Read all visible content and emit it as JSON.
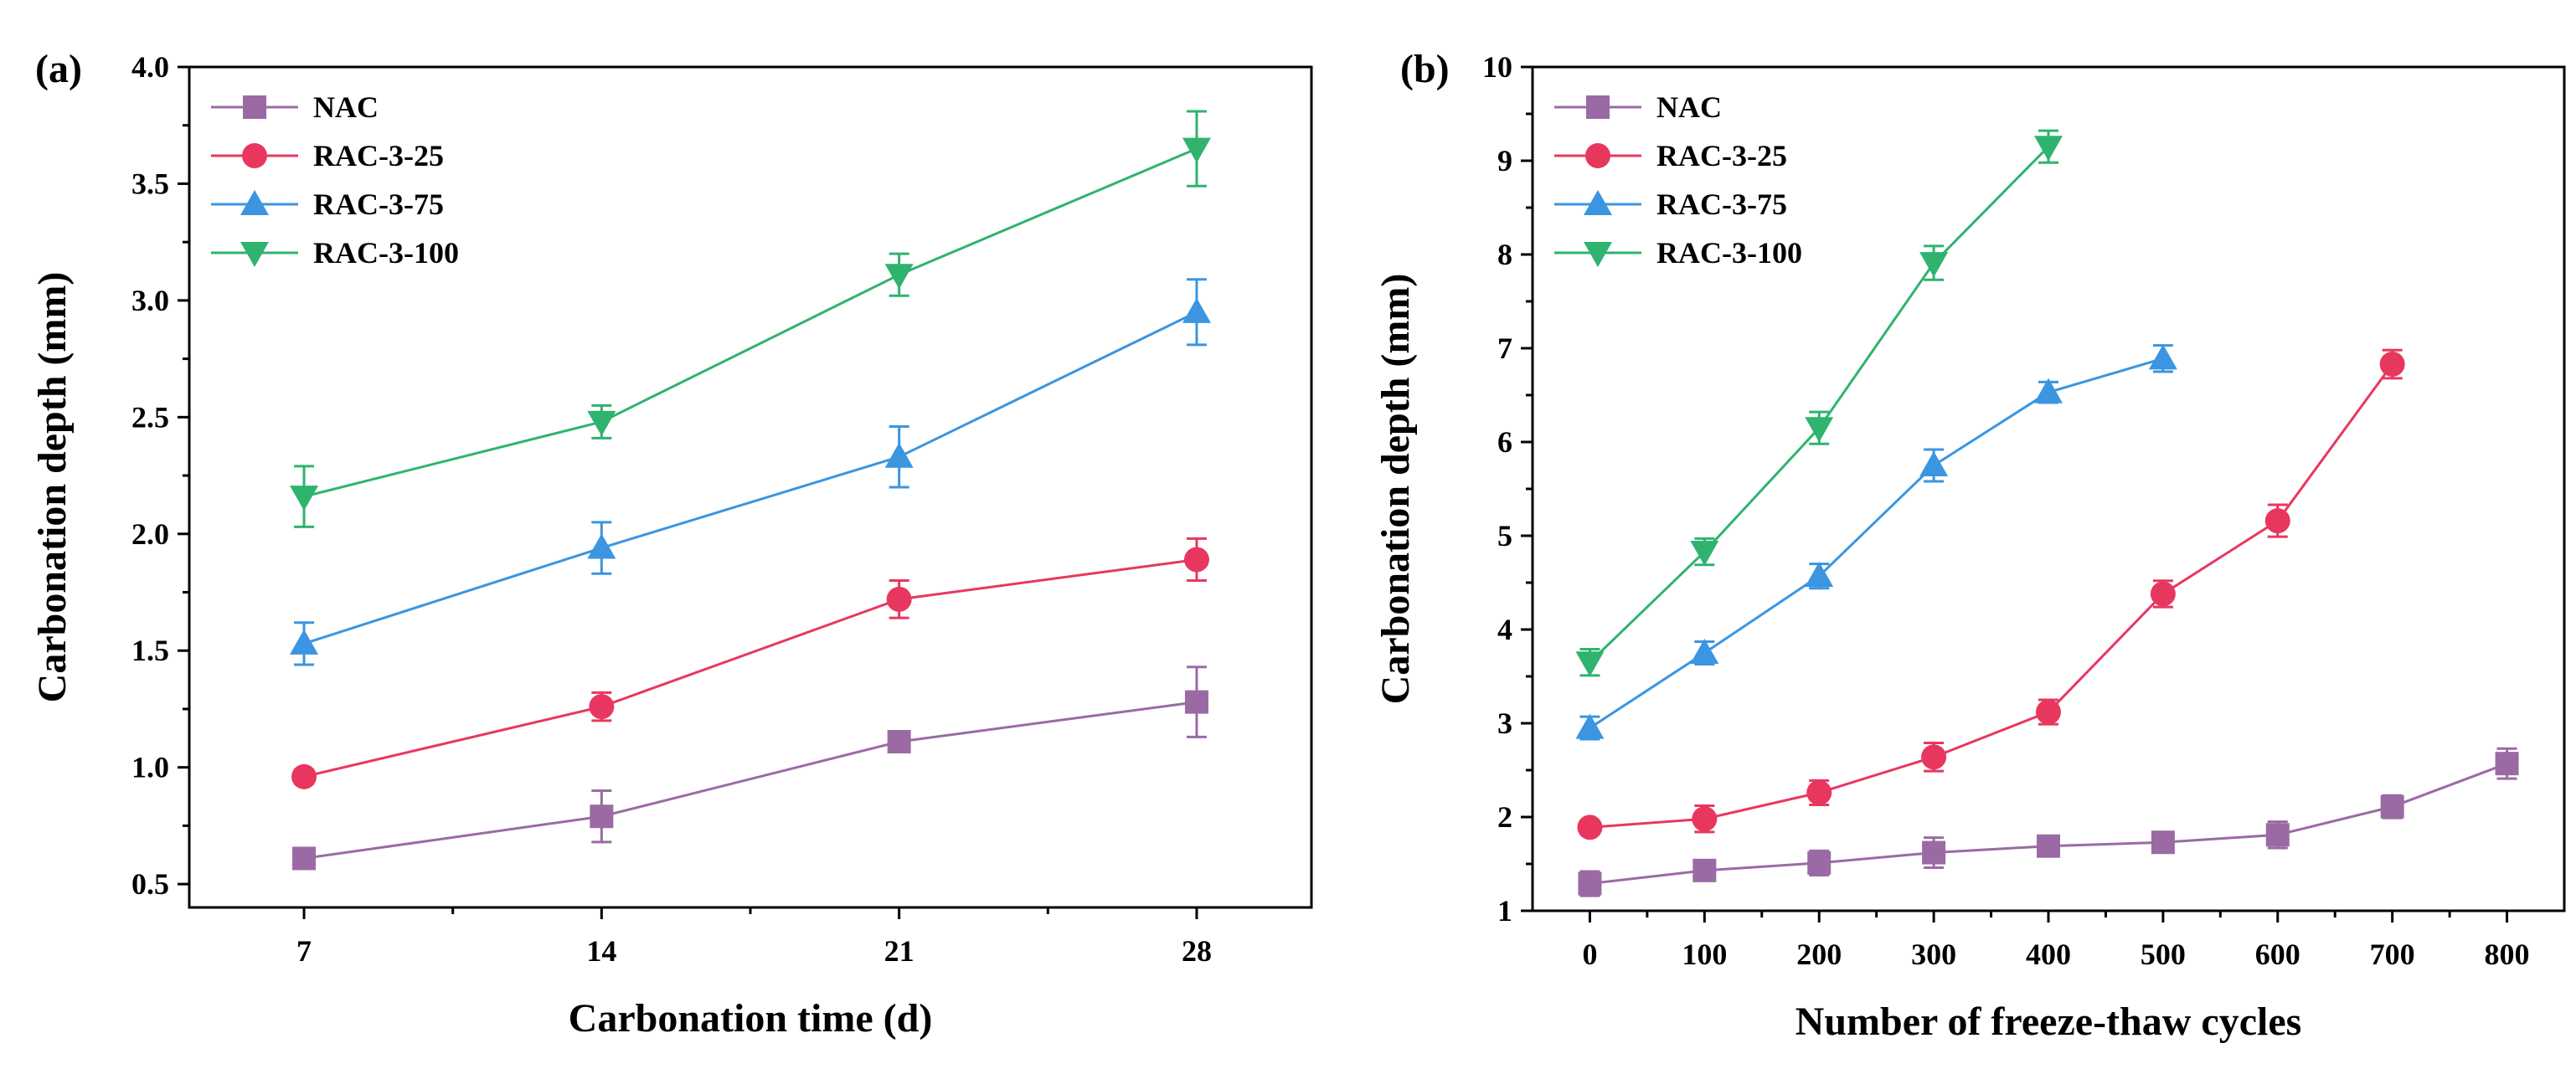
{
  "colors": {
    "NAC": "#9b6aa4",
    "RAC-3-25": "#e8375f",
    "RAC-3-75": "#3b95e0",
    "RAC-3-100": "#2fb36e",
    "axis": "#000000"
  },
  "chart_data": [
    {
      "panel_label": "(a)",
      "type": "line",
      "xlabel": "Carbonation time (d)",
      "ylabel": "Carbonation depth (mm)",
      "xlim": [
        4.3,
        30.7
      ],
      "ylim": [
        0.4,
        4.0
      ],
      "xticks": [
        7,
        14,
        21,
        28
      ],
      "yticks": [
        0.5,
        1.0,
        1.5,
        2.0,
        2.5,
        3.0,
        3.5,
        4.0
      ],
      "xtick_labels": [
        "7",
        "14",
        "21",
        "28"
      ],
      "ytick_labels": [
        "0.5",
        "1.0",
        "1.5",
        "2.0",
        "2.5",
        "3.0",
        "3.5",
        "4.0"
      ],
      "legend_position": "top-left",
      "grid": false,
      "series": [
        {
          "name": "NAC",
          "marker": "square",
          "color": "#9b6aa4",
          "x": [
            7,
            14,
            21,
            28
          ],
          "y": [
            0.61,
            0.79,
            1.11,
            1.28
          ],
          "err": [
            0.02,
            0.11,
            0.02,
            0.15
          ]
        },
        {
          "name": "RAC-3-25",
          "marker": "circle",
          "color": "#e8375f",
          "x": [
            7,
            14,
            21,
            28
          ],
          "y": [
            0.96,
            1.26,
            1.72,
            1.89
          ],
          "err": [
            0.03,
            0.06,
            0.08,
            0.09
          ]
        },
        {
          "name": "RAC-3-75",
          "marker": "triangle-up",
          "color": "#3b95e0",
          "x": [
            7,
            14,
            21,
            28
          ],
          "y": [
            1.53,
            1.94,
            2.33,
            2.95
          ],
          "err": [
            0.09,
            0.11,
            0.13,
            0.14
          ]
        },
        {
          "name": "RAC-3-100",
          "marker": "triangle-down",
          "color": "#2fb36e",
          "x": [
            7,
            14,
            21,
            28
          ],
          "y": [
            2.16,
            2.48,
            3.11,
            3.65
          ],
          "err": [
            0.13,
            0.07,
            0.09,
            0.16
          ]
        }
      ]
    },
    {
      "panel_label": "(b)",
      "type": "line",
      "xlabel": "Number of freeze-thaw cycles",
      "ylabel": "Carbonation depth (mm)",
      "xlim": [
        -50,
        850
      ],
      "ylim": [
        1,
        10
      ],
      "xticks": [
        0,
        100,
        200,
        300,
        400,
        500,
        600,
        700,
        800
      ],
      "yticks": [
        1,
        2,
        3,
        4,
        5,
        6,
        7,
        8,
        9,
        10
      ],
      "xtick_labels": [
        "0",
        "100",
        "200",
        "300",
        "400",
        "500",
        "600",
        "700",
        "800"
      ],
      "ytick_labels": [
        "1",
        "2",
        "3",
        "4",
        "5",
        "6",
        "7",
        "8",
        "9",
        "10"
      ],
      "legend_position": "top-left",
      "grid": false,
      "series": [
        {
          "name": "NAC",
          "marker": "square",
          "color": "#9b6aa4",
          "x": [
            0,
            100,
            200,
            300,
            400,
            500,
            600,
            700,
            800
          ],
          "y": [
            1.29,
            1.43,
            1.51,
            1.62,
            1.69,
            1.73,
            1.81,
            2.11,
            2.57
          ],
          "err": [
            0.13,
            0.09,
            0.13,
            0.16,
            0.06,
            0.11,
            0.14,
            0.12,
            0.16
          ]
        },
        {
          "name": "RAC-3-25",
          "marker": "circle",
          "color": "#e8375f",
          "x": [
            0,
            100,
            200,
            300,
            400,
            500,
            600,
            700
          ],
          "y": [
            1.89,
            1.98,
            2.26,
            2.64,
            3.12,
            4.38,
            5.16,
            6.83
          ],
          "err": [
            0.07,
            0.14,
            0.13,
            0.15,
            0.13,
            0.14,
            0.17,
            0.15
          ]
        },
        {
          "name": "RAC-3-75",
          "marker": "triangle-up",
          "color": "#3b95e0",
          "x": [
            0,
            100,
            200,
            300,
            400,
            500
          ],
          "y": [
            2.95,
            3.75,
            4.57,
            5.75,
            6.53,
            6.89
          ],
          "err": [
            0.12,
            0.12,
            0.13,
            0.17,
            0.11,
            0.14
          ]
        },
        {
          "name": "RAC-3-100",
          "marker": "triangle-down",
          "color": "#2fb36e",
          "x": [
            0,
            100,
            200,
            300,
            400
          ],
          "y": [
            3.65,
            4.83,
            6.15,
            7.91,
            9.15
          ],
          "err": [
            0.14,
            0.14,
            0.17,
            0.18,
            0.17
          ]
        }
      ]
    }
  ]
}
